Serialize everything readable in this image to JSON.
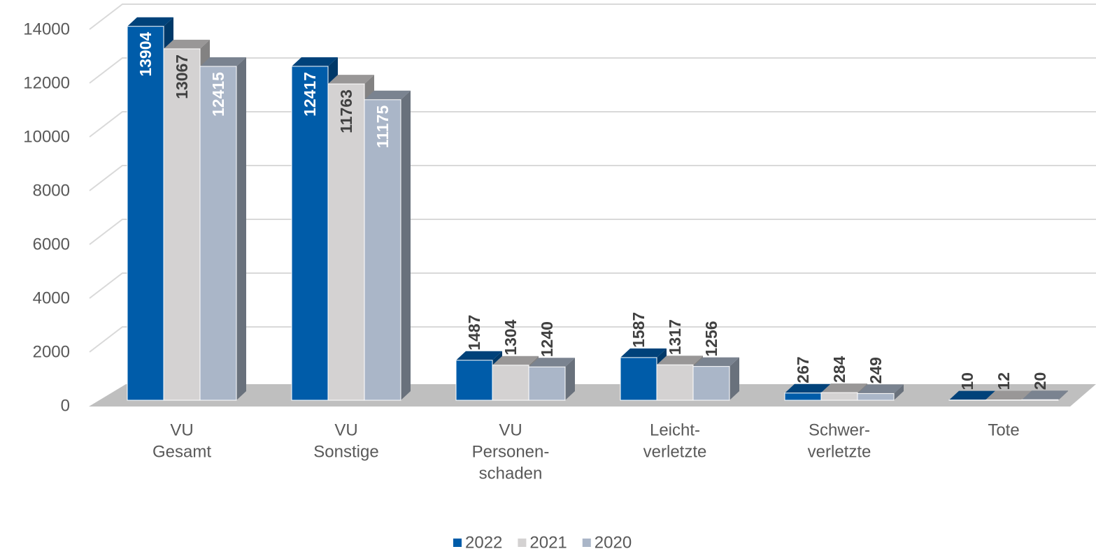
{
  "chart_data": {
    "type": "bar3d",
    "categories": [
      [
        "VU",
        "Gesamt"
      ],
      [
        "VU",
        "Sonstige"
      ],
      [
        "VU",
        "Personen-",
        "schaden"
      ],
      [
        "Leicht-",
        "verletzte"
      ],
      [
        "Schwer-",
        "verletzte"
      ],
      [
        "Tote"
      ]
    ],
    "series": [
      {
        "name": "2022",
        "color": "#005ca9",
        "values": [
          13904,
          12417,
          1487,
          1587,
          267,
          10
        ]
      },
      {
        "name": "2021",
        "color": "#d4d2d2",
        "values": [
          13067,
          11763,
          1304,
          1317,
          284,
          12
        ]
      },
      {
        "name": "2020",
        "color": "#aab6c8",
        "values": [
          12415,
          11175,
          1240,
          1256,
          249,
          20
        ]
      }
    ],
    "ylim": [
      0,
      14000
    ],
    "yticks": [
      0,
      2000,
      4000,
      6000,
      8000,
      10000,
      12000,
      14000
    ],
    "grid": true,
    "legend": "bottom"
  }
}
